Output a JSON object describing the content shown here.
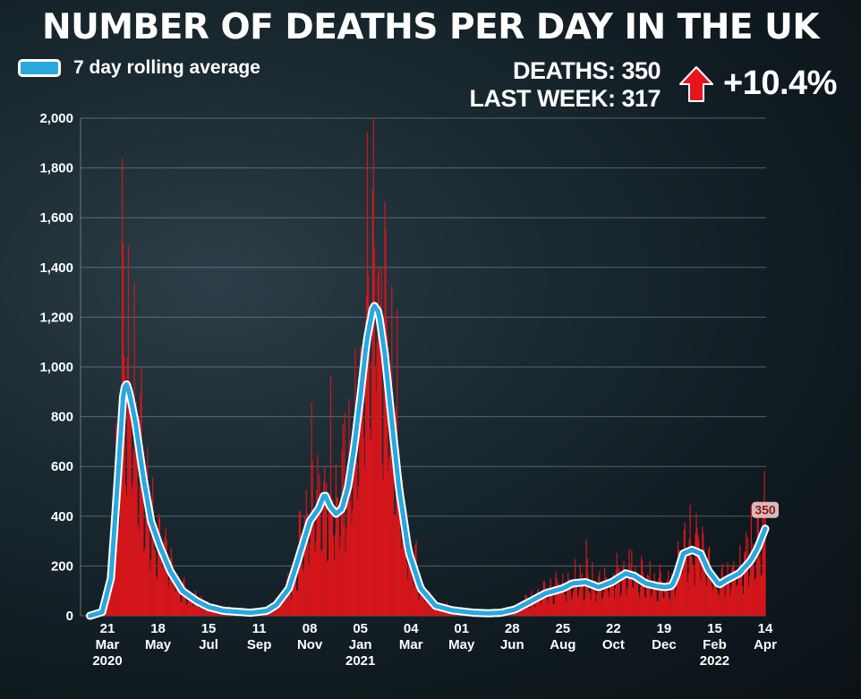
{
  "header": {
    "title": "NUMBER OF DEATHS PER DAY IN THE UK",
    "legend_label": "7 day rolling average"
  },
  "stats": {
    "deaths_label": "DEATHS: 350",
    "last_week_label": "LAST WEEK: 317",
    "change": "+10.4%"
  },
  "colors": {
    "bars": "#d4161b",
    "average_line": "#29a8e0",
    "arrow": "#e8141c"
  },
  "chart_data": {
    "type": "bar",
    "title": "NUMBER OF DEATHS PER DAY IN THE UK",
    "xlabel": "",
    "ylabel": "",
    "ylim": [
      0,
      2000
    ],
    "yticks": [
      0,
      200,
      400,
      600,
      800,
      1000,
      1200,
      1400,
      1600,
      1800,
      2000
    ],
    "ytick_labels": [
      "0",
      "200",
      "400",
      "600",
      "800",
      "1,000",
      "1,200",
      "1,400",
      "1,600",
      "1,800",
      "2,000"
    ],
    "x_range": [
      "2020-03-01",
      "2022-04-14"
    ],
    "xticks": [
      {
        "date": "2020-03-21",
        "day": "21",
        "month": "Mar",
        "year": "2020"
      },
      {
        "date": "2020-05-18",
        "day": "18",
        "month": "May",
        "year": ""
      },
      {
        "date": "2020-07-15",
        "day": "15",
        "month": "Jul",
        "year": ""
      },
      {
        "date": "2020-09-11",
        "day": "11",
        "month": "Sep",
        "year": ""
      },
      {
        "date": "2020-11-08",
        "day": "08",
        "month": "Nov",
        "year": ""
      },
      {
        "date": "2021-01-05",
        "day": "05",
        "month": "Jan",
        "year": "2021"
      },
      {
        "date": "2021-03-04",
        "day": "04",
        "month": "Mar",
        "year": ""
      },
      {
        "date": "2021-05-01",
        "day": "01",
        "month": "May",
        "year": ""
      },
      {
        "date": "2021-06-28",
        "day": "28",
        "month": "Jun",
        "year": ""
      },
      {
        "date": "2021-08-25",
        "day": "25",
        "month": "Aug",
        "year": ""
      },
      {
        "date": "2021-10-22",
        "day": "22",
        "month": "Oct",
        "year": ""
      },
      {
        "date": "2021-12-19",
        "day": "19",
        "month": "Dec",
        "year": ""
      },
      {
        "date": "2022-02-15",
        "day": "15",
        "month": "Feb",
        "year": "2022"
      },
      {
        "date": "2022-04-14",
        "day": "14",
        "month": "Apr",
        "year": ""
      }
    ],
    "series": [
      {
        "name": "7 day rolling average",
        "kind": "line",
        "points": [
          [
            "2020-03-01",
            0
          ],
          [
            "2020-03-15",
            15
          ],
          [
            "2020-03-25",
            150
          ],
          [
            "2020-04-01",
            500
          ],
          [
            "2020-04-08",
            880
          ],
          [
            "2020-04-11",
            940
          ],
          [
            "2020-04-15",
            900
          ],
          [
            "2020-04-22",
            780
          ],
          [
            "2020-05-01",
            560
          ],
          [
            "2020-05-10",
            380
          ],
          [
            "2020-05-20",
            280
          ],
          [
            "2020-06-01",
            180
          ],
          [
            "2020-06-15",
            100
          ],
          [
            "2020-07-01",
            60
          ],
          [
            "2020-07-15",
            35
          ],
          [
            "2020-08-01",
            20
          ],
          [
            "2020-09-01",
            12
          ],
          [
            "2020-09-20",
            20
          ],
          [
            "2020-10-01",
            45
          ],
          [
            "2020-10-15",
            110
          ],
          [
            "2020-10-25",
            220
          ],
          [
            "2020-11-08",
            380
          ],
          [
            "2020-11-18",
            430
          ],
          [
            "2020-11-25",
            490
          ],
          [
            "2020-12-01",
            440
          ],
          [
            "2020-12-08",
            410
          ],
          [
            "2020-12-15",
            430
          ],
          [
            "2020-12-22",
            520
          ],
          [
            "2020-12-29",
            680
          ],
          [
            "2021-01-05",
            880
          ],
          [
            "2021-01-12",
            1100
          ],
          [
            "2021-01-20",
            1250
          ],
          [
            "2021-01-26",
            1220
          ],
          [
            "2021-02-02",
            1050
          ],
          [
            "2021-02-10",
            780
          ],
          [
            "2021-02-18",
            520
          ],
          [
            "2021-03-01",
            260
          ],
          [
            "2021-03-15",
            110
          ],
          [
            "2021-04-01",
            40
          ],
          [
            "2021-04-20",
            22
          ],
          [
            "2021-05-15",
            12
          ],
          [
            "2021-06-01",
            10
          ],
          [
            "2021-06-15",
            12
          ],
          [
            "2021-07-01",
            25
          ],
          [
            "2021-07-20",
            60
          ],
          [
            "2021-08-05",
            90
          ],
          [
            "2021-08-25",
            110
          ],
          [
            "2021-09-05",
            130
          ],
          [
            "2021-09-20",
            135
          ],
          [
            "2021-10-05",
            115
          ],
          [
            "2021-10-20",
            135
          ],
          [
            "2021-11-05",
            170
          ],
          [
            "2021-11-15",
            160
          ],
          [
            "2021-11-28",
            130
          ],
          [
            "2021-12-10",
            120
          ],
          [
            "2021-12-20",
            115
          ],
          [
            "2021-12-28",
            120
          ],
          [
            "2022-01-02",
            160
          ],
          [
            "2022-01-10",
            250
          ],
          [
            "2022-01-20",
            265
          ],
          [
            "2022-01-30",
            250
          ],
          [
            "2022-02-08",
            180
          ],
          [
            "2022-02-20",
            125
          ],
          [
            "2022-03-01",
            145
          ],
          [
            "2022-03-15",
            170
          ],
          [
            "2022-03-28",
            220
          ],
          [
            "2022-04-05",
            270
          ],
          [
            "2022-04-14",
            350
          ]
        ]
      }
    ],
    "annotations": [
      {
        "text": "350",
        "date": "2022-04-14",
        "value": 350
      }
    ]
  }
}
